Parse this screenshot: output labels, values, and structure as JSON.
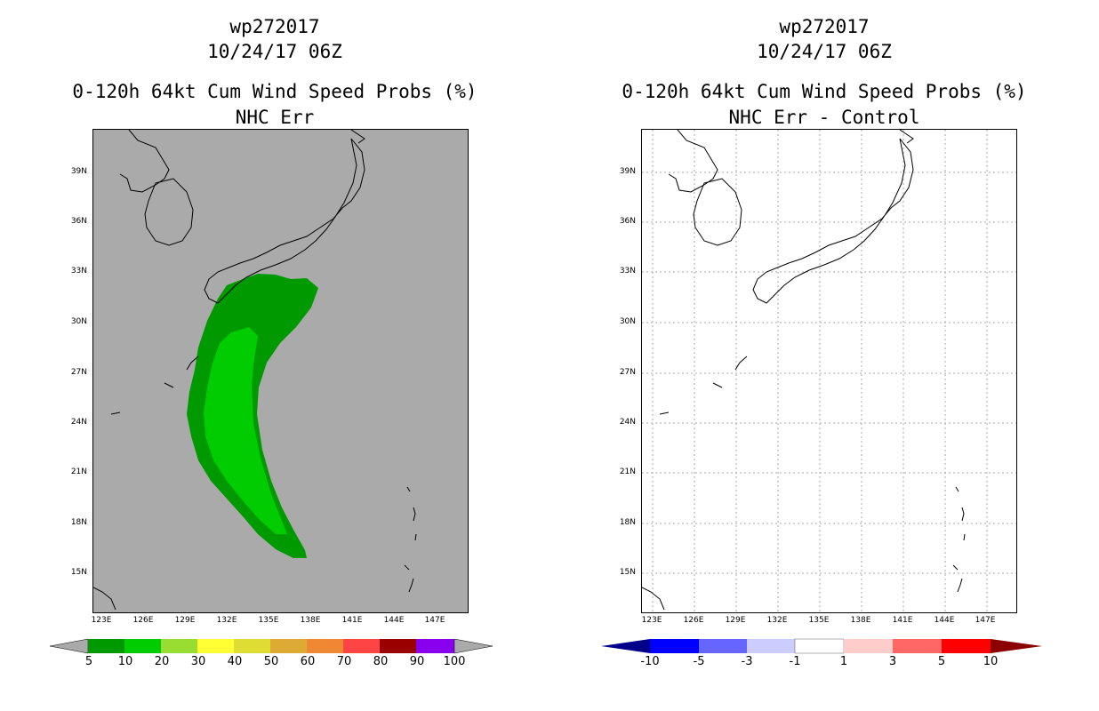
{
  "left_panel": {
    "title_line1": "wp272017",
    "title_line2": "10/24/17 06Z",
    "title_line3": "0-120h 64kt Cum Wind Speed Probs (%)",
    "title_line4": "NHC Err",
    "background_color": "#aaaaaa",
    "colorbar_labels": [
      "5",
      "10",
      "20",
      "30",
      "40",
      "50",
      "60",
      "70",
      "80",
      "90",
      "100"
    ],
    "colorbar_colors": [
      "#009900",
      "#00cc00",
      "#99dd33",
      "#ffff33",
      "#dddd33",
      "#ddaa33",
      "#ee8833",
      "#ff4444",
      "#990000",
      "#880000",
      "#8800ee"
    ]
  },
  "right_panel": {
    "title_line1": "wp272017",
    "title_line2": "10/24/17 06Z",
    "title_line3": "0-120h 64kt Cum Wind Speed Probs (%)",
    "title_line4": "NHC Err - Control",
    "background_color": "#ffffff",
    "colorbar_labels": [
      "-10",
      "-5",
      "-3",
      "-1",
      "1",
      "3",
      "5",
      "10"
    ],
    "colorbar_colors": [
      "#00008b",
      "#0000ff",
      "#6666ff",
      "#ccccff",
      "#ffffff",
      "#ffcccc",
      "#ff6666",
      "#ff0000",
      "#8b0000"
    ]
  },
  "lat_labels": [
    "39N",
    "36N",
    "33N",
    "30N",
    "27N",
    "24N",
    "21N",
    "18N",
    "15N"
  ],
  "lon_labels": [
    "123E",
    "126E",
    "129E",
    "132E",
    "135E",
    "138E",
    "141E",
    "144E",
    "147E"
  ]
}
